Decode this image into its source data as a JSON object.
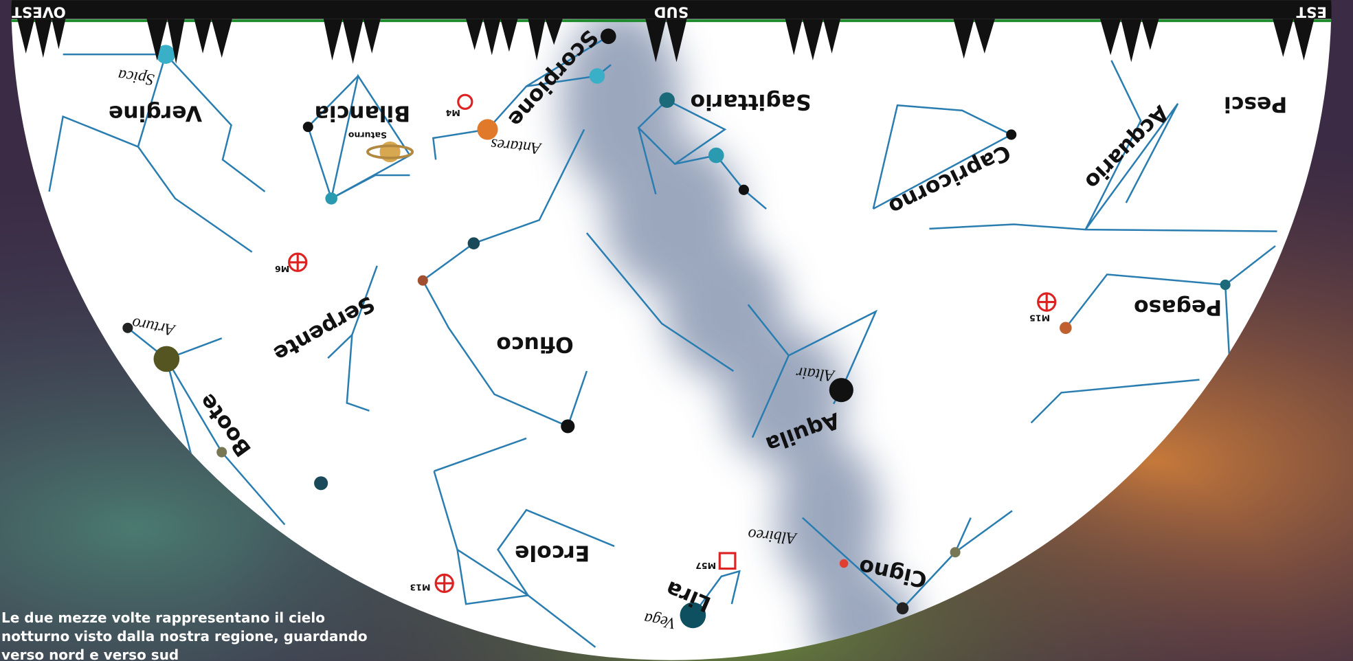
{
  "horizon": [
    "OVEST",
    "SUD",
    "EST"
  ],
  "constellations": [
    "Vergine",
    "Bilancia",
    "Scorpione",
    "Sagittario",
    "Capricorno",
    "Acquario",
    "Pesci",
    "Pegaso",
    "Serpente",
    "Ofiuco",
    "Aquila",
    "Boote",
    "Ercole",
    "Lira",
    "Cigno"
  ],
  "stars": [
    "Spica",
    "Antares",
    "Arturo",
    "Altair",
    "Vega",
    "Albireo"
  ],
  "objects": [
    "Saturno",
    "M4",
    "M6",
    "M15",
    "M13",
    "M57"
  ],
  "caption": [
    "Le due mezze volte rappresentano il cielo",
    "notturno visto dalla nostra regione, guardando",
    "verso nord e verso sud"
  ]
}
